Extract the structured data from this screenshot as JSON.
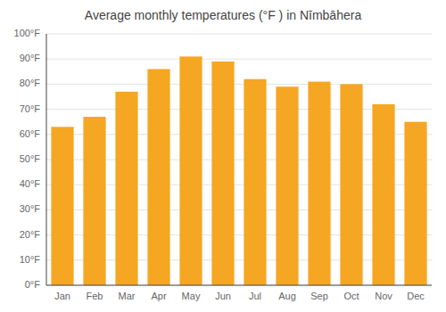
{
  "chart_data": {
    "type": "bar",
    "title": "Average monthly temperatures (°F ) in Nīmbāhera",
    "categories": [
      "Jan",
      "Feb",
      "Mar",
      "Apr",
      "May",
      "Jun",
      "Jul",
      "Aug",
      "Sep",
      "Oct",
      "Nov",
      "Dec"
    ],
    "values": [
      63,
      67,
      77,
      86,
      91,
      89,
      82,
      79,
      81,
      80,
      72,
      65
    ],
    "color": "#F5A623",
    "ylim": [
      0,
      100
    ],
    "yticks": [
      {
        "value": 0,
        "label": "0°F"
      },
      {
        "value": 10,
        "label": "10°F"
      },
      {
        "value": 20,
        "label": "20°F"
      },
      {
        "value": 30,
        "label": "30°F"
      },
      {
        "value": 40,
        "label": "40°F"
      },
      {
        "value": 50,
        "label": "50°F"
      },
      {
        "value": 60,
        "label": "60°F"
      },
      {
        "value": 70,
        "label": "70°F"
      },
      {
        "value": 80,
        "label": "80°F"
      },
      {
        "value": 90,
        "label": "90°F"
      },
      {
        "value": 100,
        "label": "100°F"
      }
    ],
    "grid": true
  }
}
